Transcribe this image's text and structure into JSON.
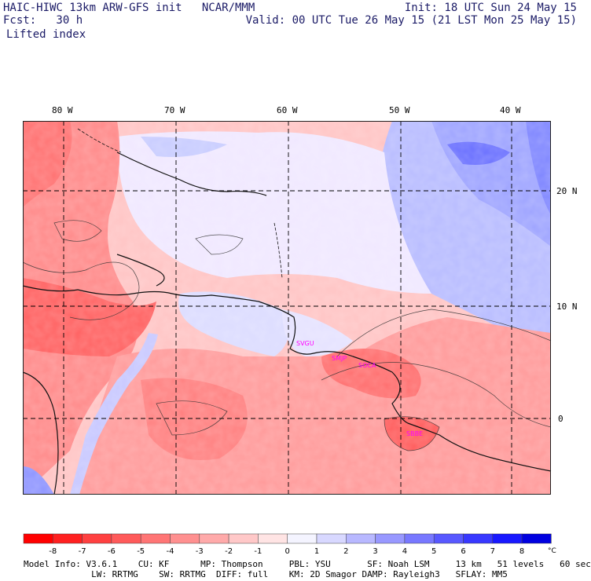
{
  "header": {
    "left1": "HAIC-HIWC 13km ARW-GFS init   NCAR/MMM",
    "left2": "Fcst:   30 h",
    "field": "Lifted index",
    "right1": "Init: 18 UTC Sun 24 May 15",
    "right2": "Valid: 00 UTC Tue 26 May 15 (21 LST Mon 25 May 15)"
  },
  "axes": {
    "lon_labels": [
      "80 W",
      "70 W",
      "60 W",
      "50 W",
      "40 W"
    ],
    "lat_labels": [
      "20 N",
      "10 N",
      "0"
    ]
  },
  "stations": [
    "SVGU",
    "SMJP",
    "SOCA",
    "SBBE"
  ],
  "colorbar": {
    "ticks": [
      "-8",
      "-7",
      "-6",
      "-5",
      "-4",
      "-3",
      "-2",
      "-1",
      "0",
      "1",
      "2",
      "3",
      "4",
      "5",
      "6",
      "7",
      "8"
    ],
    "unit": "°C",
    "colors": [
      "#ff0000",
      "#ff2020",
      "#ff4040",
      "#ff5a5a",
      "#ff7575",
      "#ff9090",
      "#ffaaaa",
      "#ffc8c8",
      "#ffe4e4",
      "#f4f4ff",
      "#d8d8ff",
      "#b8b8ff",
      "#9898ff",
      "#7878ff",
      "#5858ff",
      "#3838ff",
      "#1818ff",
      "#0000e0"
    ]
  },
  "footer": {
    "line1": "Model Info: V3.6.1    CU: KF      MP: Thompson     PBL: YSU       SF: Noah LSM     13 km   51 levels   60 sec",
    "line2": "             LW: RRTMG    SW: RRTMG  DIFF: full    KM: 2D Smagor DAMP: Rayleigh3   SFLAY: MM5"
  }
}
